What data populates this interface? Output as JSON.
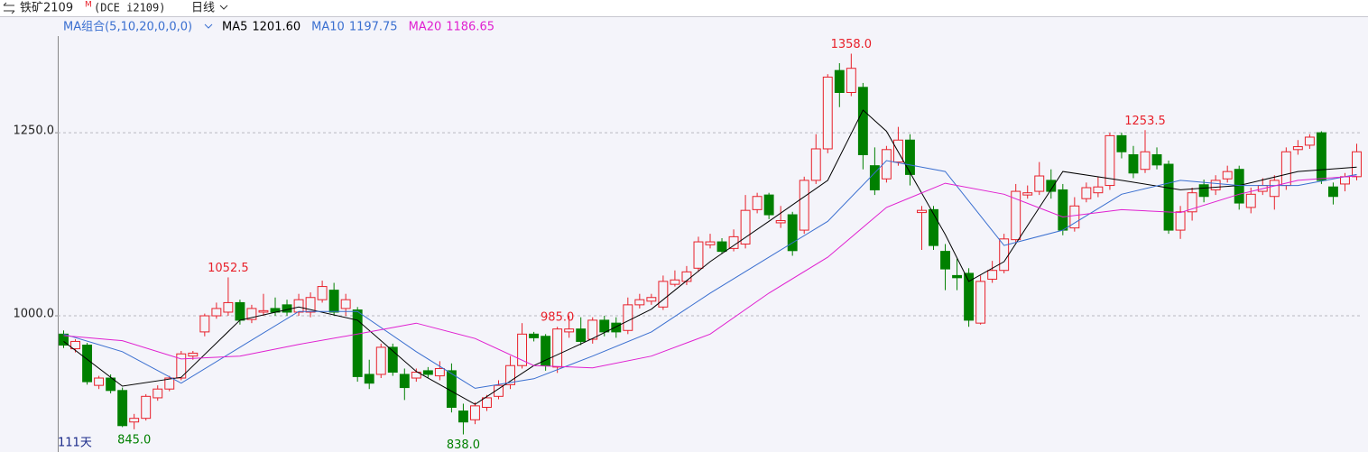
{
  "header": {
    "symbol": "铁矿2109",
    "badge": "M",
    "code": "(DCE i2109)",
    "period": "日线"
  },
  "chart_data": {
    "type": "candlestick",
    "indicator": "MA组合(5,10,20,0,0,0)",
    "footer": "111天",
    "up_color": "#e8202a",
    "down_color": "#008000",
    "ylim": [
      814,
      1382
    ],
    "yticks": [
      {
        "value": 1000,
        "label": "1000.0"
      },
      {
        "value": 1250,
        "label": "1250.0"
      }
    ],
    "grid": true,
    "candles": [
      [
        975,
        980,
        956,
        960
      ],
      [
        955,
        968,
        950,
        965
      ],
      [
        960,
        963,
        906,
        910
      ],
      [
        905,
        918,
        900,
        915
      ],
      [
        915,
        920,
        894,
        898
      ],
      [
        898,
        902,
        848,
        850
      ],
      [
        855,
        866,
        845,
        860
      ],
      [
        860,
        893,
        857,
        890
      ],
      [
        888,
        905,
        884,
        900
      ],
      [
        900,
        918,
        897,
        915
      ],
      [
        915,
        952,
        912,
        948
      ],
      [
        945,
        952,
        940,
        949
      ],
      [
        978,
        1003,
        972,
        1000
      ],
      [
        1000,
        1018,
        996,
        1010
      ],
      [
        1005,
        1052.5,
        1000,
        1018
      ],
      [
        1018,
        1022,
        988,
        994
      ],
      [
        995,
        1015,
        990,
        1010
      ],
      [
        1005,
        1030,
        1000,
        1007
      ],
      [
        1010,
        1025,
        1000,
        1005
      ],
      [
        1015,
        1022,
        1000,
        1005
      ],
      [
        1005,
        1030,
        1000,
        1022
      ],
      [
        1005,
        1032,
        998,
        1025
      ],
      [
        1022,
        1048,
        1018,
        1040
      ],
      [
        1035,
        1045,
        1000,
        1005
      ],
      [
        1010,
        1030,
        1000,
        1022
      ],
      [
        1008,
        1012,
        910,
        917
      ],
      [
        920,
        940,
        900,
        908
      ],
      [
        920,
        962,
        915,
        957
      ],
      [
        957,
        962,
        918,
        923
      ],
      [
        920,
        928,
        885,
        902
      ],
      [
        915,
        928,
        910,
        923
      ],
      [
        925,
        930,
        915,
        920
      ],
      [
        918,
        938,
        912,
        928
      ],
      [
        925,
        935,
        868,
        875
      ],
      [
        870,
        880,
        838,
        855
      ],
      [
        858,
        882,
        852,
        877
      ],
      [
        875,
        892,
        870,
        888
      ],
      [
        890,
        912,
        886,
        905
      ],
      [
        906,
        945,
        900,
        932
      ],
      [
        932,
        990,
        928,
        975
      ],
      [
        975,
        978,
        965,
        970
      ],
      [
        972,
        975,
        925,
        932
      ],
      [
        930,
        985,
        922,
        982
      ],
      [
        978,
        1000,
        970,
        982
      ],
      [
        982,
        998,
        960,
        965
      ],
      [
        968,
        998,
        962,
        994
      ],
      [
        994,
        1000,
        972,
        978
      ],
      [
        990,
        998,
        970,
        978
      ],
      [
        980,
        1025,
        975,
        1015
      ],
      [
        1015,
        1030,
        1010,
        1022
      ],
      [
        1020,
        1030,
        1015,
        1025
      ],
      [
        1012,
        1055,
        1008,
        1047
      ],
      [
        1043,
        1062,
        1040,
        1049
      ],
      [
        1047,
        1068,
        1042,
        1060
      ],
      [
        1065,
        1108,
        1060,
        1101
      ],
      [
        1097,
        1112,
        1092,
        1101
      ],
      [
        1101,
        1106,
        1085,
        1088
      ],
      [
        1092,
        1118,
        1088,
        1108
      ],
      [
        1098,
        1165,
        1092,
        1144
      ],
      [
        1145,
        1168,
        1140,
        1163
      ],
      [
        1165,
        1168,
        1132,
        1138
      ],
      [
        1127,
        1150,
        1120,
        1130
      ],
      [
        1138,
        1142,
        1082,
        1089
      ],
      [
        1117,
        1190,
        1112,
        1185
      ],
      [
        1185,
        1248,
        1180,
        1228
      ],
      [
        1228,
        1330,
        1222,
        1326
      ],
      [
        1335,
        1345,
        1285,
        1305
      ],
      [
        1305,
        1358,
        1300,
        1338
      ],
      [
        1312,
        1318,
        1200,
        1220
      ],
      [
        1205,
        1230,
        1165,
        1172
      ],
      [
        1187,
        1232,
        1182,
        1227
      ],
      [
        1210,
        1258,
        1205,
        1240
      ],
      [
        1240,
        1248,
        1178,
        1193
      ],
      [
        1141,
        1150,
        1090,
        1144
      ],
      [
        1145,
        1150,
        1090,
        1096
      ],
      [
        1088,
        1098,
        1035,
        1064
      ],
      [
        1055,
        1078,
        1035,
        1052
      ],
      [
        1058,
        1065,
        985,
        994
      ],
      [
        990,
        1055,
        988,
        1047
      ],
      [
        1050,
        1075,
        1045,
        1062
      ],
      [
        1062,
        1112,
        1058,
        1105
      ],
      [
        1104,
        1180,
        1100,
        1170
      ],
      [
        1165,
        1178,
        1160,
        1168
      ],
      [
        1170,
        1210,
        1165,
        1191
      ],
      [
        1185,
        1200,
        1160,
        1170
      ],
      [
        1172,
        1180,
        1110,
        1117
      ],
      [
        1120,
        1162,
        1115,
        1150
      ],
      [
        1160,
        1182,
        1155,
        1175
      ],
      [
        1168,
        1190,
        1162,
        1176
      ],
      [
        1178,
        1250,
        1172,
        1246
      ],
      [
        1246,
        1250,
        1215,
        1224
      ],
      [
        1220,
        1232,
        1188,
        1195
      ],
      [
        1200,
        1253.5,
        1195,
        1224
      ],
      [
        1220,
        1230,
        1200,
        1206
      ],
      [
        1207,
        1212,
        1112,
        1117
      ],
      [
        1117,
        1150,
        1105,
        1142
      ],
      [
        1142,
        1175,
        1130,
        1168
      ],
      [
        1179,
        1186,
        1155,
        1163
      ],
      [
        1172,
        1192,
        1165,
        1185
      ],
      [
        1187,
        1205,
        1182,
        1197
      ],
      [
        1200,
        1205,
        1145,
        1154
      ],
      [
        1148,
        1175,
        1140,
        1166
      ],
      [
        1170,
        1188,
        1165,
        1178
      ],
      [
        1163,
        1192,
        1145,
        1185
      ],
      [
        1178,
        1230,
        1172,
        1224
      ],
      [
        1227,
        1240,
        1220,
        1231
      ],
      [
        1233,
        1248,
        1228,
        1244
      ],
      [
        1250,
        1252,
        1180,
        1185
      ],
      [
        1176,
        1182,
        1152,
        1163
      ],
      [
        1180,
        1195,
        1170,
        1190
      ],
      [
        1190,
        1235,
        1185,
        1224
      ]
    ],
    "annotations": [
      1052.5,
      {
        "value": 845,
        "label": "845.0"
      },
      {
        "value": 838,
        "label": "838.0"
      },
      {
        "value": 1358,
        "label": "1358.0"
      },
      {
        "value": 985,
        "label": "985.0"
      },
      1253.5
    ],
    "series": [
      {
        "name": "MA5",
        "color": "#000000",
        "latest": {
          "value": 1201.6,
          "label": "1201.60"
        },
        "x": [
          0,
          5,
          10,
          15,
          20,
          25,
          30,
          35,
          40,
          45,
          50,
          55,
          60,
          65,
          68,
          70,
          75,
          77,
          80,
          85,
          90,
          95,
          100,
          105,
          110
        ],
        "values": [
          965,
          904,
          916,
          994,
          1012,
          994,
          924,
          879,
          932,
          969,
          1009,
          1074,
          1129,
          1185,
          1281,
          1252,
          1111,
          1047,
          1074,
          1197,
          1185,
          1172,
          1178,
          1197,
          1203
        ]
      },
      {
        "name": "MA10",
        "color": "#3a6fd0",
        "latest": {
          "value": 1197.75,
          "label": "1197.75"
        },
        "x": [
          0,
          5,
          10,
          15,
          20,
          25,
          30,
          35,
          40,
          45,
          50,
          55,
          60,
          65,
          70,
          75,
          80,
          85,
          90,
          95,
          100,
          105,
          110
        ],
        "values": [
          975,
          951,
          908,
          957,
          1006,
          1006,
          951,
          901,
          914,
          945,
          978,
          1031,
          1080,
          1129,
          1212,
          1197,
          1096,
          1117,
          1166,
          1185,
          1178,
          1178,
          1193
        ]
      },
      {
        "name": "MA20",
        "color": "#e020d0",
        "latest": {
          "value": 1186.65,
          "label": "1186.65"
        },
        "x": [
          0,
          5,
          10,
          15,
          20,
          25,
          30,
          35,
          40,
          45,
          50,
          55,
          60,
          65,
          70,
          75,
          80,
          85,
          90,
          95,
          100,
          105,
          110
        ],
        "values": [
          973,
          966,
          941,
          945,
          961,
          975,
          990,
          969,
          932,
          929,
          945,
          975,
          1031,
          1080,
          1148,
          1181,
          1166,
          1135,
          1145,
          1141,
          1166,
          1185,
          1191
        ]
      }
    ]
  }
}
